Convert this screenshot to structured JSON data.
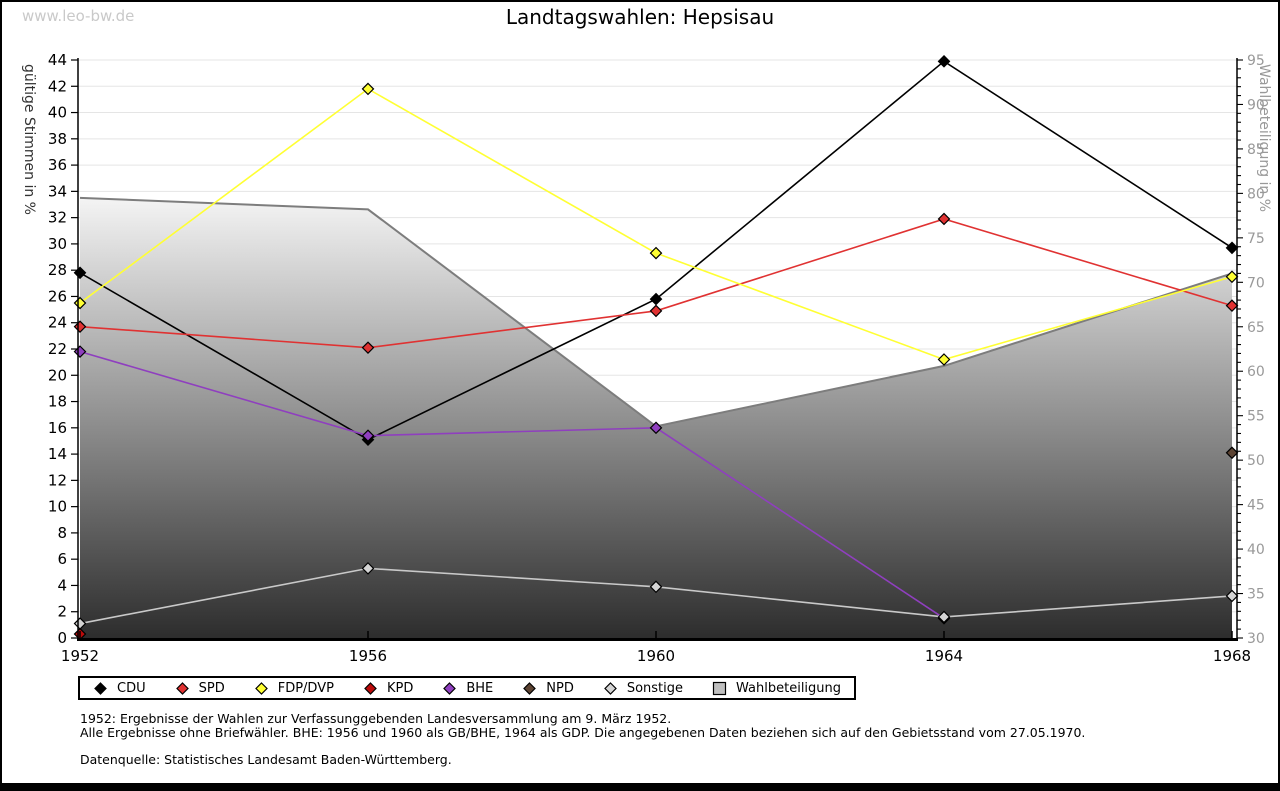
{
  "page": {
    "watermark": "www.leo-bw.de",
    "title": "Landtagswahlen: Hepsisau",
    "footnote_line1": "1952: Ergebnisse der Wahlen zur Verfassunggebenden Landesversammlung am 9. März 1952.",
    "footnote_line2": "Alle Ergebnisse ohne Briefwähler. BHE: 1956 und 1960 als GB/BHE, 1964 als GDP. Die angegebenen Daten beziehen sich auf den Gebietsstand vom 27.05.1970.",
    "source": "Datenquelle: Statistisches Landesamt Baden-Württemberg."
  },
  "chart_data": {
    "type": "line",
    "title": "Landtagswahlen: Hepsisau",
    "x_labels": [
      "1952",
      "1956",
      "1960",
      "1964",
      "1968"
    ],
    "left_axis": {
      "label": "gültige Stimmen in %",
      "min": 0,
      "max": 44,
      "tick_step": 2
    },
    "right_axis": {
      "label": "Wahlbeteiligung in %",
      "min": 30,
      "max": 95,
      "tick_step": 5,
      "minor_tick_step": 1
    },
    "grid": true,
    "legend_position": "bottom",
    "series": [
      {
        "name": "CDU",
        "axis": "left",
        "color": "#000000",
        "marker": "diamond",
        "values": [
          27.8,
          15.1,
          25.8,
          43.9,
          29.7
        ]
      },
      {
        "name": "SPD",
        "axis": "left",
        "color": "#e03232",
        "marker": "diamond",
        "values": [
          23.7,
          22.1,
          24.9,
          31.9,
          25.3
        ]
      },
      {
        "name": "FDP/DVP",
        "axis": "left",
        "color": "#ffff33",
        "marker": "diamond",
        "values": [
          25.5,
          41.8,
          29.3,
          21.2,
          27.5
        ]
      },
      {
        "name": "KPD",
        "axis": "left",
        "color": "#bb0a0a",
        "marker": "diamond",
        "values": [
          0.3,
          null,
          null,
          null,
          null
        ]
      },
      {
        "name": "BHE",
        "axis": "left",
        "color": "#8f3fbf",
        "marker": "diamond",
        "values": [
          21.8,
          15.4,
          16.0,
          1.5,
          null
        ]
      },
      {
        "name": "NPD",
        "axis": "left",
        "color": "#5c4332",
        "marker": "diamond",
        "values": [
          null,
          null,
          null,
          null,
          14.1
        ]
      },
      {
        "name": "Sonstige",
        "axis": "left",
        "color": "#d4d4d4",
        "line_color": "#c9c9c9",
        "marker": "diamond",
        "values": [
          1.1,
          5.3,
          3.9,
          1.6,
          3.2
        ]
      }
    ],
    "turnout_series": {
      "name": "Wahlbeteiligung",
      "axis": "right",
      "marker": "square",
      "line_color": "#7d7d7d",
      "fill_top": "#f4f4f4",
      "fill_bottom": "#2d2d2d",
      "legend_color": "#bfbfbf",
      "values": [
        79.5,
        78.2,
        53.8,
        60.6,
        71.0
      ]
    },
    "colors": {
      "grid": "#e5e5e5",
      "axis": "#000000",
      "right_tick_text": "#999999",
      "left_title_text": "#333333"
    }
  }
}
